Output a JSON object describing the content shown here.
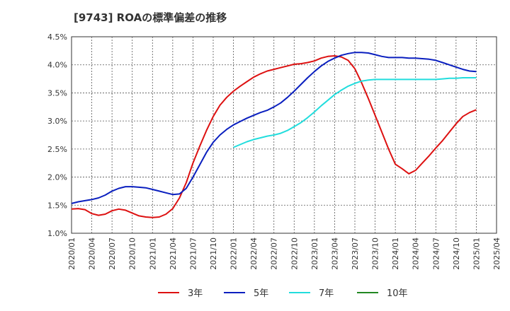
{
  "chart_data": {
    "type": "line",
    "title": "[9743]  ROAの標準偏差の推移",
    "xlabel": "",
    "ylabel": "",
    "ylim": [
      1.0,
      4.5
    ],
    "y_ticks": [
      "1.0%",
      "1.5%",
      "2.0%",
      "2.5%",
      "3.0%",
      "3.5%",
      "4.0%",
      "4.5%"
    ],
    "y_tick_values": [
      1.0,
      1.5,
      2.0,
      2.5,
      3.0,
      3.5,
      4.0,
      4.5
    ],
    "x_ticks": [
      "2020/01",
      "2020/04",
      "2020/07",
      "2020/10",
      "2021/01",
      "2021/04",
      "2021/07",
      "2021/10",
      "2022/01",
      "2022/04",
      "2022/07",
      "2022/10",
      "2023/01",
      "2023/04",
      "2023/07",
      "2023/10",
      "2024/01",
      "2024/04",
      "2024/07",
      "2024/10",
      "2025/01",
      "2025/04"
    ],
    "grid": true,
    "legend_position": "bottom",
    "series": [
      {
        "name": "3年",
        "color": "#dd1111",
        "points": [
          [
            "2020/01",
            1.43
          ],
          [
            "2020/02",
            1.44
          ],
          [
            "2020/03",
            1.42
          ],
          [
            "2020/04",
            1.35
          ],
          [
            "2020/05",
            1.32
          ],
          [
            "2020/06",
            1.34
          ],
          [
            "2020/07",
            1.4
          ],
          [
            "2020/08",
            1.43
          ],
          [
            "2020/09",
            1.41
          ],
          [
            "2020/10",
            1.36
          ],
          [
            "2020/11",
            1.31
          ],
          [
            "2020/12",
            1.29
          ],
          [
            "2021/01",
            1.28
          ],
          [
            "2021/02",
            1.29
          ],
          [
            "2021/03",
            1.34
          ],
          [
            "2021/04",
            1.44
          ],
          [
            "2021/05",
            1.63
          ],
          [
            "2021/06",
            1.9
          ],
          [
            "2021/07",
            2.25
          ],
          [
            "2021/08",
            2.55
          ],
          [
            "2021/09",
            2.83
          ],
          [
            "2021/10",
            3.08
          ],
          [
            "2021/11",
            3.28
          ],
          [
            "2021/12",
            3.42
          ],
          [
            "2022/01",
            3.53
          ],
          [
            "2022/02",
            3.62
          ],
          [
            "2022/03",
            3.7
          ],
          [
            "2022/04",
            3.78
          ],
          [
            "2022/05",
            3.84
          ],
          [
            "2022/06",
            3.89
          ],
          [
            "2022/07",
            3.92
          ],
          [
            "2022/08",
            3.95
          ],
          [
            "2022/09",
            3.98
          ],
          [
            "2022/10",
            4.01
          ],
          [
            "2022/11",
            4.02
          ],
          [
            "2022/12",
            4.04
          ],
          [
            "2023/01",
            4.07
          ],
          [
            "2023/02",
            4.12
          ],
          [
            "2023/03",
            4.15
          ],
          [
            "2023/04",
            4.16
          ],
          [
            "2023/05",
            4.14
          ],
          [
            "2023/06",
            4.08
          ],
          [
            "2023/07",
            3.93
          ],
          [
            "2023/08",
            3.68
          ],
          [
            "2023/09",
            3.4
          ],
          [
            "2023/10",
            3.1
          ],
          [
            "2023/11",
            2.8
          ],
          [
            "2023/12",
            2.5
          ],
          [
            "2024/01",
            2.23
          ],
          [
            "2024/02",
            2.15
          ],
          [
            "2024/03",
            2.06
          ],
          [
            "2024/04",
            2.12
          ],
          [
            "2024/05",
            2.25
          ],
          [
            "2024/06",
            2.38
          ],
          [
            "2024/07",
            2.52
          ],
          [
            "2024/08",
            2.65
          ],
          [
            "2024/09",
            2.8
          ],
          [
            "2024/10",
            2.95
          ],
          [
            "2024/11",
            3.08
          ],
          [
            "2024/12",
            3.15
          ],
          [
            "2025/01",
            3.2
          ]
        ]
      },
      {
        "name": "5年",
        "color": "#0a1fbf",
        "points": [
          [
            "2020/01",
            1.53
          ],
          [
            "2020/02",
            1.56
          ],
          [
            "2020/03",
            1.58
          ],
          [
            "2020/04",
            1.6
          ],
          [
            "2020/05",
            1.63
          ],
          [
            "2020/06",
            1.68
          ],
          [
            "2020/07",
            1.75
          ],
          [
            "2020/08",
            1.8
          ],
          [
            "2020/09",
            1.83
          ],
          [
            "2020/10",
            1.83
          ],
          [
            "2020/11",
            1.82
          ],
          [
            "2020/12",
            1.81
          ],
          [
            "2021/01",
            1.78
          ],
          [
            "2021/02",
            1.75
          ],
          [
            "2021/03",
            1.72
          ],
          [
            "2021/04",
            1.69
          ],
          [
            "2021/05",
            1.7
          ],
          [
            "2021/06",
            1.8
          ],
          [
            "2021/07",
            2.0
          ],
          [
            "2021/08",
            2.22
          ],
          [
            "2021/09",
            2.44
          ],
          [
            "2021/10",
            2.62
          ],
          [
            "2021/11",
            2.75
          ],
          [
            "2021/12",
            2.85
          ],
          [
            "2022/01",
            2.93
          ],
          [
            "2022/02",
            2.99
          ],
          [
            "2022/03",
            3.05
          ],
          [
            "2022/04",
            3.1
          ],
          [
            "2022/05",
            3.15
          ],
          [
            "2022/06",
            3.19
          ],
          [
            "2022/07",
            3.25
          ],
          [
            "2022/08",
            3.32
          ],
          [
            "2022/09",
            3.42
          ],
          [
            "2022/10",
            3.53
          ],
          [
            "2022/11",
            3.65
          ],
          [
            "2022/12",
            3.77
          ],
          [
            "2023/01",
            3.88
          ],
          [
            "2023/02",
            3.98
          ],
          [
            "2023/03",
            4.06
          ],
          [
            "2023/04",
            4.12
          ],
          [
            "2023/05",
            4.17
          ],
          [
            "2023/06",
            4.2
          ],
          [
            "2023/07",
            4.22
          ],
          [
            "2023/08",
            4.22
          ],
          [
            "2023/09",
            4.21
          ],
          [
            "2023/10",
            4.18
          ],
          [
            "2023/11",
            4.15
          ],
          [
            "2023/12",
            4.13
          ],
          [
            "2024/01",
            4.13
          ],
          [
            "2024/02",
            4.13
          ],
          [
            "2024/03",
            4.12
          ],
          [
            "2024/04",
            4.12
          ],
          [
            "2024/05",
            4.11
          ],
          [
            "2024/06",
            4.1
          ],
          [
            "2024/07",
            4.08
          ],
          [
            "2024/08",
            4.04
          ],
          [
            "2024/09",
            4.0
          ],
          [
            "2024/10",
            3.96
          ],
          [
            "2024/11",
            3.92
          ],
          [
            "2024/12",
            3.89
          ],
          [
            "2025/01",
            3.88
          ]
        ]
      },
      {
        "name": "7年",
        "color": "#22dddd",
        "points": [
          [
            "2022/01",
            2.53
          ],
          [
            "2022/02",
            2.58
          ],
          [
            "2022/03",
            2.63
          ],
          [
            "2022/04",
            2.67
          ],
          [
            "2022/05",
            2.7
          ],
          [
            "2022/06",
            2.73
          ],
          [
            "2022/07",
            2.75
          ],
          [
            "2022/08",
            2.78
          ],
          [
            "2022/09",
            2.83
          ],
          [
            "2022/10",
            2.9
          ],
          [
            "2022/11",
            2.97
          ],
          [
            "2022/12",
            3.06
          ],
          [
            "2023/01",
            3.16
          ],
          [
            "2023/02",
            3.27
          ],
          [
            "2023/03",
            3.37
          ],
          [
            "2023/04",
            3.47
          ],
          [
            "2023/05",
            3.55
          ],
          [
            "2023/06",
            3.62
          ],
          [
            "2023/07",
            3.67
          ],
          [
            "2023/08",
            3.71
          ],
          [
            "2023/09",
            3.73
          ],
          [
            "2023/10",
            3.74
          ],
          [
            "2023/11",
            3.74
          ],
          [
            "2023/12",
            3.74
          ],
          [
            "2024/01",
            3.74
          ],
          [
            "2024/02",
            3.74
          ],
          [
            "2024/03",
            3.74
          ],
          [
            "2024/04",
            3.74
          ],
          [
            "2024/05",
            3.74
          ],
          [
            "2024/06",
            3.74
          ],
          [
            "2024/07",
            3.74
          ],
          [
            "2024/08",
            3.75
          ],
          [
            "2024/09",
            3.76
          ],
          [
            "2024/10",
            3.76
          ],
          [
            "2024/11",
            3.77
          ],
          [
            "2024/12",
            3.77
          ],
          [
            "2025/01",
            3.77
          ]
        ]
      },
      {
        "name": "10年",
        "color": "#228822",
        "points": []
      }
    ]
  }
}
